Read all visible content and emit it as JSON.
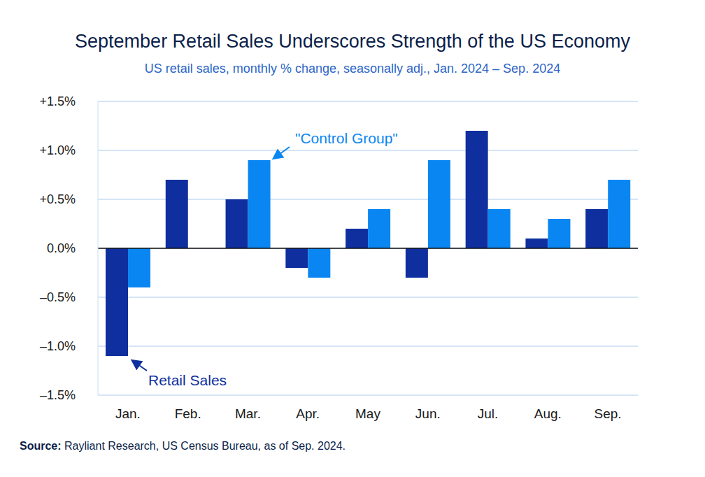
{
  "chart_data": {
    "type": "bar",
    "title": "September Retail Sales Underscores Strength of the US Economy",
    "subtitle": "US retail sales, monthly % change, seasonally adj., Jan. 2024 – Sep. 2024",
    "categories": [
      "Jan.",
      "Feb.",
      "Mar.",
      "Apr.",
      "May",
      "Jun.",
      "Jul.",
      "Aug.",
      "Sep."
    ],
    "series": [
      {
        "name": "Retail Sales",
        "color": "#0f2f9e",
        "values": [
          -1.1,
          0.7,
          0.5,
          -0.2,
          0.2,
          -0.3,
          1.2,
          0.1,
          0.4
        ]
      },
      {
        "name": "\"Control Group\"",
        "color": "#0a86f2",
        "values": [
          -0.4,
          null,
          0.9,
          -0.3,
          0.4,
          0.9,
          0.4,
          0.3,
          0.7
        ]
      }
    ],
    "ylim": [
      -1.5,
      1.5
    ],
    "yticks": [
      {
        "value": -1.5,
        "label": "–1.5%"
      },
      {
        "value": -1.0,
        "label": "–1.0%"
      },
      {
        "value": -0.5,
        "label": "–0.5%"
      },
      {
        "value": 0,
        "label": "0.0%"
      },
      {
        "value": 0.5,
        "label": "+0.5%"
      },
      {
        "value": 1.0,
        "label": "+1.0%"
      },
      {
        "value": 1.5,
        "label": "+1.5%"
      }
    ],
    "grid": true,
    "source_label": "Source:",
    "source_text": "Rayliant Research, US Census Bureau, as of Sep. 2024."
  }
}
